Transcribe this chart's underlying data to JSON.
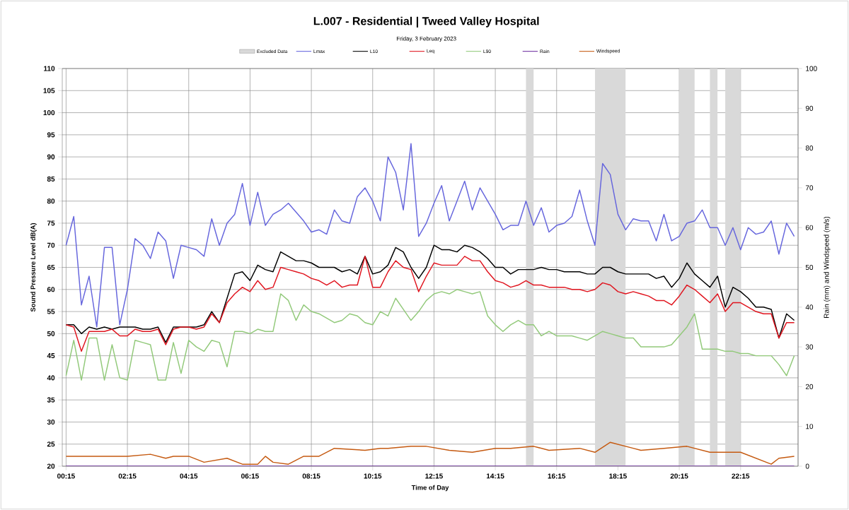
{
  "chart_data": {
    "type": "line",
    "title": "L.007 - Residential  | Tweed Valley Hospital",
    "subtitle": "Friday, 3 February 2023",
    "xlabel": "Time of Day",
    "ylabel": "Sound Pressure Level dB(A)",
    "y2label": "Rain (mm) and Windspeed (m/s)",
    "xlim": [
      0.125,
      24.125
    ],
    "xticks": [
      {
        "value": 0.25,
        "label": "00:15"
      },
      {
        "value": 2.25,
        "label": "02:15"
      },
      {
        "value": 4.25,
        "label": "04:15"
      },
      {
        "value": 6.25,
        "label": "06:15"
      },
      {
        "value": 8.25,
        "label": "08:15"
      },
      {
        "value": 10.25,
        "label": "10:15"
      },
      {
        "value": 12.25,
        "label": "12:15"
      },
      {
        "value": 14.25,
        "label": "14:15"
      },
      {
        "value": 16.25,
        "label": "16:15"
      },
      {
        "value": 18.25,
        "label": "18:15"
      },
      {
        "value": 20.25,
        "label": "20:15"
      },
      {
        "value": 22.25,
        "label": "22:15"
      }
    ],
    "ylim": [
      20,
      110
    ],
    "yticks": [
      20,
      25,
      30,
      35,
      40,
      45,
      50,
      55,
      60,
      65,
      70,
      75,
      80,
      85,
      90,
      95,
      100,
      105,
      110
    ],
    "y2lim": [
      0,
      100
    ],
    "y2ticks": [
      0,
      10,
      20,
      30,
      40,
      50,
      60,
      70,
      80,
      90,
      100
    ],
    "grid": true,
    "legend": "top",
    "x": [
      0.25,
      0.5,
      0.75,
      1.0,
      1.25,
      1.5,
      1.75,
      2.0,
      2.25,
      2.5,
      2.75,
      3.0,
      3.25,
      3.5,
      3.75,
      4.0,
      4.25,
      4.5,
      4.75,
      5.0,
      5.25,
      5.5,
      5.75,
      6.0,
      6.25,
      6.5,
      6.75,
      7.0,
      7.25,
      7.5,
      7.75,
      8.0,
      8.25,
      8.5,
      8.75,
      9.0,
      9.25,
      9.5,
      9.75,
      10.0,
      10.25,
      10.5,
      10.75,
      11.0,
      11.25,
      11.5,
      11.75,
      12.0,
      12.25,
      12.5,
      12.75,
      13.0,
      13.25,
      13.5,
      13.75,
      14.0,
      14.25,
      14.5,
      14.75,
      15.0,
      15.25,
      15.5,
      15.75,
      16.0,
      16.25,
      16.5,
      16.75,
      17.0,
      17.25,
      17.5,
      17.75,
      18.0,
      18.25,
      18.5,
      18.75,
      19.0,
      19.25,
      19.5,
      19.75,
      20.0,
      20.25,
      20.5,
      20.75,
      21.0,
      21.25,
      21.5,
      21.75,
      22.0,
      22.25,
      22.5,
      22.75,
      23.0,
      23.25,
      23.5,
      23.75,
      24.0
    ],
    "bands": [
      {
        "axis": "x",
        "from": 15.25,
        "to": 15.5,
        "color": "#d9d9d9",
        "label": "Excluded Data"
      },
      {
        "axis": "x",
        "from": 17.5,
        "to": 18.5,
        "color": "#d9d9d9"
      },
      {
        "axis": "x",
        "from": 20.25,
        "to": 20.75,
        "color": "#d9d9d9"
      },
      {
        "axis": "x",
        "from": 21.25,
        "to": 21.5,
        "color": "#d9d9d9"
      },
      {
        "axis": "x",
        "from": 21.75,
        "to": 22.25,
        "color": "#d9d9d9"
      }
    ],
    "series": [
      {
        "name": "Lmax",
        "color": "#6666dd",
        "values": [
          70,
          76.5,
          56.5,
          63,
          51.5,
          69.5,
          69.5,
          52,
          60,
          71.5,
          70,
          67,
          73,
          71,
          62.5,
          70,
          69.5,
          69,
          67.5,
          76,
          70,
          75,
          77,
          84,
          74.5,
          82,
          74.5,
          77,
          78,
          79.5,
          77.5,
          75.5,
          73,
          73.5,
          72.5,
          78,
          75.5,
          75,
          81,
          83,
          80,
          75.5,
          90,
          86.5,
          78,
          93,
          72,
          75,
          79.5,
          83.5,
          75.5,
          80,
          84.5,
          78,
          83,
          80,
          77,
          73.5,
          74.5,
          74.5,
          80,
          74.5,
          78.5,
          73,
          74.5,
          75,
          76.5,
          82.5,
          75.5,
          70,
          88.5,
          86,
          77,
          73.5,
          76,
          75.5,
          75.5,
          71,
          77,
          71,
          72,
          75,
          75.5,
          78,
          74,
          74,
          70,
          74,
          69,
          74,
          72.5,
          73,
          75.5,
          68,
          75,
          72
        ]
      },
      {
        "name": "L10",
        "color": "#000000",
        "values": [
          52,
          52,
          50,
          51.5,
          51,
          51.5,
          51,
          51.5,
          51.5,
          51.5,
          51,
          51,
          51.5,
          48,
          51.5,
          51.5,
          51.5,
          51.5,
          52,
          55,
          52.5,
          58,
          63.5,
          64,
          62,
          65.5,
          64.5,
          64,
          68.5,
          67.5,
          66.5,
          66.5,
          66,
          65,
          65,
          65,
          64,
          64.5,
          63.5,
          67.5,
          63.5,
          64,
          65.5,
          69.5,
          68.5,
          65,
          62.5,
          65,
          70,
          69,
          69,
          68.5,
          70,
          69.5,
          68.5,
          67,
          65,
          65,
          63.5,
          64.5,
          64.5,
          64.5,
          65,
          64.5,
          64.5,
          64,
          64,
          64,
          63.5,
          63.5,
          65,
          65,
          64,
          63.5,
          63.5,
          63.5,
          63.5,
          62.5,
          63,
          60.5,
          62.5,
          66,
          63.5,
          62,
          60.5,
          63,
          56,
          60.5,
          59.5,
          58,
          56,
          56,
          55.5,
          49,
          54.5,
          53
        ]
      },
      {
        "name": "Leq",
        "color": "#e0141e",
        "values": [
          52,
          51.5,
          46,
          50.5,
          50.5,
          50.5,
          51,
          49.5,
          49.5,
          51,
          50.5,
          50.5,
          51,
          47.5,
          51,
          51.5,
          51.5,
          51,
          51.5,
          54.5,
          52.5,
          57,
          59,
          60.5,
          59.5,
          62,
          60,
          60.5,
          65,
          64.5,
          64,
          63.5,
          62.5,
          62,
          61,
          62,
          60.5,
          61,
          61,
          67.5,
          60.5,
          60.5,
          64,
          66.5,
          65,
          64.5,
          59.5,
          63,
          66,
          65.5,
          65.5,
          65.5,
          67.5,
          66.5,
          66.5,
          64,
          62,
          61.5,
          60.5,
          61,
          62,
          61,
          61,
          60.5,
          60.5,
          60.5,
          60,
          60,
          59.5,
          60,
          61.5,
          61,
          59.5,
          59,
          59.5,
          59,
          58.5,
          57.5,
          57.5,
          56.5,
          58.5,
          61,
          60,
          58.5,
          57,
          59,
          55,
          57,
          57,
          56,
          55,
          54.5,
          54.5,
          49,
          52.5,
          52.5
        ]
      },
      {
        "name": "L90",
        "color": "#92c97a",
        "values": [
          40.5,
          48.5,
          39.5,
          49,
          49,
          39.5,
          47.5,
          40,
          39.5,
          48.5,
          48,
          47.5,
          39.5,
          39.5,
          48,
          41,
          48.5,
          47,
          46,
          48.5,
          48,
          42.5,
          50.5,
          50.5,
          50,
          51,
          50.5,
          50.5,
          59,
          57.5,
          53,
          56.5,
          55,
          54.5,
          53.5,
          52.5,
          53,
          54.5,
          54,
          52.5,
          52,
          55,
          54,
          58,
          55.5,
          53,
          55,
          57.5,
          59,
          59.5,
          59,
          60,
          59.5,
          59,
          59.5,
          54,
          52,
          50.5,
          52,
          53,
          52,
          52,
          49.5,
          50.5,
          49.5,
          49.5,
          49.5,
          49,
          48.5,
          49.5,
          50.5,
          50,
          49.5,
          49,
          49,
          47,
          47,
          47,
          47,
          47.5,
          49.5,
          51.5,
          54.5,
          46.5,
          46.5,
          46.5,
          46,
          46,
          45.5,
          45.5,
          45,
          45,
          45,
          43,
          40.5,
          45
        ]
      },
      {
        "name": "Rain",
        "color": "#7030a0",
        "axis": "y2",
        "x": [
          0.25,
          24.0
        ],
        "values": [
          0,
          0
        ]
      },
      {
        "name": "Windspeed",
        "color": "#c55a11",
        "axis": "y2",
        "x": [
          0.25,
          1.0,
          1.5,
          2.25,
          3.0,
          3.5,
          3.75,
          4.25,
          4.75,
          5.5,
          6.0,
          6.5,
          6.75,
          7.0,
          7.5,
          8.0,
          8.5,
          9.0,
          10.0,
          10.5,
          10.75,
          11.5,
          12.0,
          12.75,
          13.5,
          14.25,
          14.75,
          15.5,
          16.0,
          17.0,
          17.5,
          18.0,
          18.75,
          19.0,
          19.75,
          20.5,
          21.25,
          22.25,
          23.25,
          23.5,
          24.0
        ],
        "values": [
          2.5,
          2.5,
          2.5,
          2.5,
          3,
          2,
          2.5,
          2.5,
          1,
          2,
          0.5,
          0.5,
          2.5,
          1,
          0.5,
          2.5,
          2.5,
          4.5,
          4,
          4.5,
          4.5,
          5,
          5,
          4,
          3.5,
          4.5,
          4.5,
          5,
          4,
          4.5,
          3.5,
          6,
          4.5,
          4,
          4.5,
          5,
          3.5,
          3.5,
          0.5,
          2,
          2.5
        ]
      }
    ]
  }
}
